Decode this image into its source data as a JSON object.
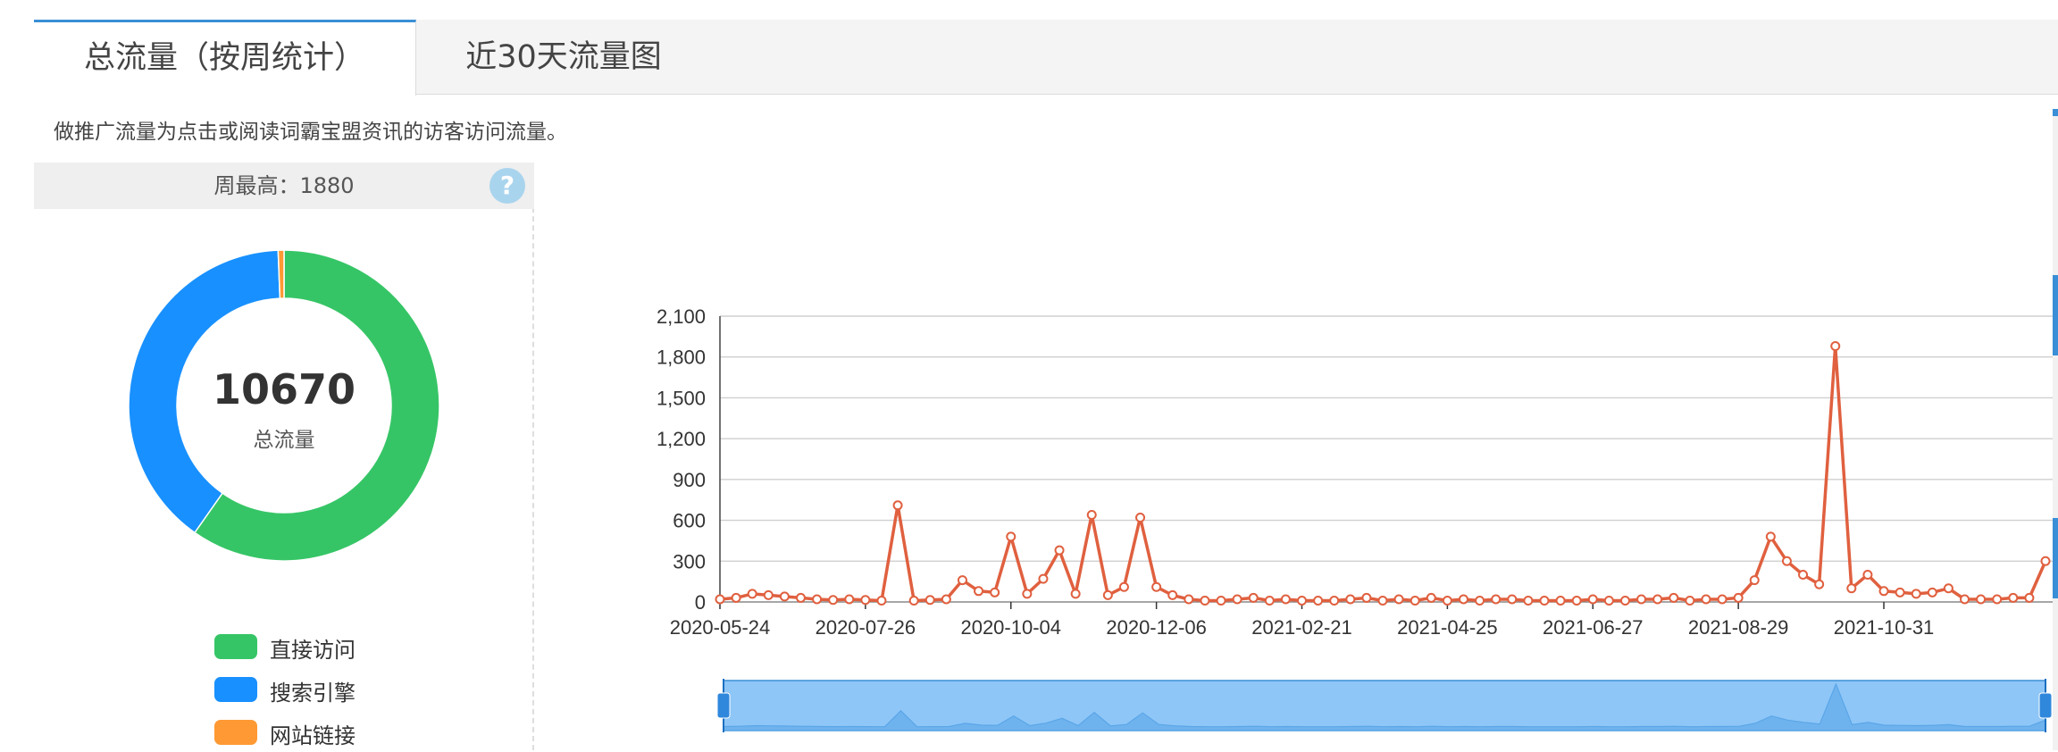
{
  "tabs": [
    {
      "label": "总流量（按周统计）",
      "active": true
    },
    {
      "label": "近30天流量图",
      "active": false
    }
  ],
  "note": "做推广流量为点击或阅读词霸宝盟资讯的访客访问流量。",
  "stats": {
    "weekly_max_label": "周最高：1880",
    "help_icon": "question-circle-icon",
    "help_glyph": "?",
    "total_value": "10670",
    "total_label": "总流量"
  },
  "colors": {
    "accent": "#3a8fd6",
    "direct": "#36c566",
    "search": "#1890ff",
    "link": "#ff9933",
    "line": "#e0603f",
    "zoom_fill": "#8ec6f7"
  },
  "chart_data": [
    {
      "type": "pie",
      "variant": "donut",
      "legend": [
        "直接访问",
        "搜索引擎",
        "网站链接"
      ],
      "values": [
        6375,
        4230,
        65
      ],
      "center_value": "10670",
      "center_label": "总流量",
      "legend_position": "bottom"
    },
    {
      "type": "line",
      "x_ticks": [
        "2020-05-24",
        "2020-07-26",
        "2020-10-04",
        "2020-12-06",
        "2021-02-21",
        "2021-04-25",
        "2021-06-27",
        "2021-08-29",
        "2021-10-31"
      ],
      "y_ticks": [
        "0",
        "300",
        "600",
        "900",
        "1,200",
        "1,500",
        "1,800",
        "2,100"
      ],
      "ylim": [
        0,
        2100
      ],
      "grid": true,
      "zoom_slider": true,
      "series": [
        {
          "values": [
            20,
            30,
            60,
            50,
            40,
            30,
            20,
            15,
            20,
            15,
            10,
            710,
            10,
            15,
            20,
            160,
            80,
            70,
            480,
            60,
            170,
            380,
            60,
            640,
            50,
            110,
            620,
            110,
            50,
            20,
            10,
            10,
            20,
            30,
            10,
            20,
            10,
            10,
            10,
            20,
            30,
            10,
            20,
            10,
            30,
            10,
            20,
            10,
            20,
            20,
            10,
            10,
            10,
            10,
            20,
            10,
            10,
            20,
            20,
            30,
            10,
            20,
            20,
            30,
            160,
            480,
            300,
            200,
            130,
            1880,
            100,
            200,
            80,
            70,
            60,
            70,
            100,
            20,
            20,
            20,
            30,
            30,
            300
          ]
        }
      ]
    }
  ]
}
